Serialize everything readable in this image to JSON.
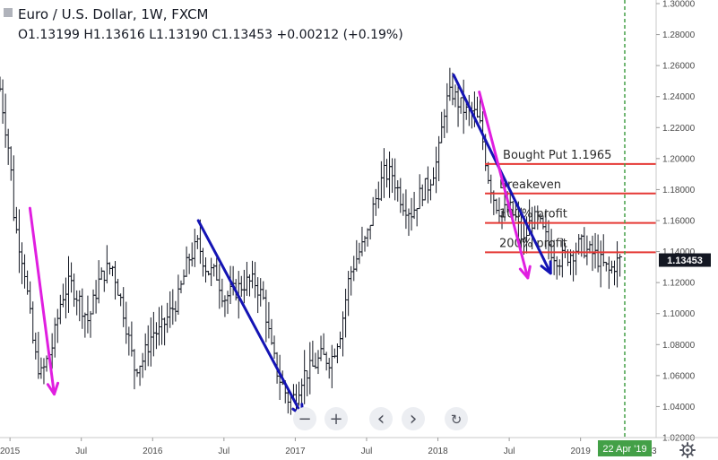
{
  "header": {
    "title": "Euro / U.S. Dollar, 1W, FXCM",
    "ohlc": "O1.13199  H1.13616  L1.13190  C1.13453  +0.00212 (+0.19%)"
  },
  "chart_data": {
    "type": "bar",
    "title": "Euro / U.S. Dollar, 1W, FXCM",
    "ylim": [
      1.02,
      1.3
    ],
    "xlim": [
      2014.93,
      2019.53
    ],
    "y_ticks": [
      "1.30000",
      "1.28000",
      "1.26000",
      "1.24000",
      "1.22000",
      "1.20000",
      "1.18000",
      "1.16000",
      "1.14000",
      "1.12000",
      "1.10000",
      "1.08000",
      "1.06000",
      "1.04000",
      "1.02000"
    ],
    "y_tick_values": [
      1.3,
      1.28,
      1.26,
      1.24,
      1.22,
      1.2,
      1.18,
      1.16,
      1.14,
      1.12,
      1.1,
      1.08,
      1.06,
      1.04,
      1.02
    ],
    "x_ticks": [
      {
        "label": "2015",
        "x": 2015.0
      },
      {
        "label": "Jul",
        "x": 2015.5
      },
      {
        "label": "2016",
        "x": 2016.0
      },
      {
        "label": "Jul",
        "x": 2016.5
      },
      {
        "label": "2017",
        "x": 2017.0
      },
      {
        "label": "Jul",
        "x": 2017.5
      },
      {
        "label": "2018",
        "x": 2018.0
      },
      {
        "label": "Jul",
        "x": 2018.5
      },
      {
        "label": "2019",
        "x": 2019.0
      }
    ],
    "price_path": [
      [
        2014.93,
        1.245
      ],
      [
        2015.0,
        1.2
      ],
      [
        2015.03,
        1.16
      ],
      [
        2015.1,
        1.13
      ],
      [
        2015.17,
        1.075
      ],
      [
        2015.22,
        1.06
      ],
      [
        2015.3,
        1.08
      ],
      [
        2015.36,
        1.11
      ],
      [
        2015.42,
        1.12
      ],
      [
        2015.48,
        1.11
      ],
      [
        2015.55,
        1.095
      ],
      [
        2015.62,
        1.12
      ],
      [
        2015.67,
        1.128
      ],
      [
        2015.72,
        1.13
      ],
      [
        2015.8,
        1.1
      ],
      [
        2015.87,
        1.065
      ],
      [
        2015.93,
        1.07
      ],
      [
        2016.0,
        1.088
      ],
      [
        2016.05,
        1.088
      ],
      [
        2016.12,
        1.1
      ],
      [
        2016.18,
        1.11
      ],
      [
        2016.25,
        1.135
      ],
      [
        2016.32,
        1.145
      ],
      [
        2016.38,
        1.128
      ],
      [
        2016.45,
        1.125
      ],
      [
        2016.5,
        1.11
      ],
      [
        2016.58,
        1.115
      ],
      [
        2016.65,
        1.12
      ],
      [
        2016.72,
        1.12
      ],
      [
        2016.78,
        1.108
      ],
      [
        2016.83,
        1.078
      ],
      [
        2016.88,
        1.06
      ],
      [
        2016.95,
        1.045
      ],
      [
        2017.0,
        1.046
      ],
      [
        2017.05,
        1.06
      ],
      [
        2017.12,
        1.065
      ],
      [
        2017.18,
        1.072
      ],
      [
        2017.25,
        1.07
      ],
      [
        2017.32,
        1.09
      ],
      [
        2017.38,
        1.125
      ],
      [
        2017.45,
        1.14
      ],
      [
        2017.5,
        1.148
      ],
      [
        2017.55,
        1.17
      ],
      [
        2017.62,
        1.19
      ],
      [
        2017.68,
        1.19
      ],
      [
        2017.75,
        1.172
      ],
      [
        2017.82,
        1.165
      ],
      [
        2017.88,
        1.178
      ],
      [
        2017.93,
        1.183
      ],
      [
        2018.0,
        1.2
      ],
      [
        2018.05,
        1.235
      ],
      [
        2018.1,
        1.243
      ],
      [
        2018.15,
        1.235
      ],
      [
        2018.2,
        1.23
      ],
      [
        2018.25,
        1.23
      ],
      [
        2018.3,
        1.22
      ],
      [
        2018.35,
        1.19
      ],
      [
        2018.4,
        1.172
      ],
      [
        2018.45,
        1.165
      ],
      [
        2018.5,
        1.168
      ],
      [
        2018.55,
        1.16
      ],
      [
        2018.6,
        1.145
      ],
      [
        2018.65,
        1.16
      ],
      [
        2018.7,
        1.16
      ],
      [
        2018.75,
        1.15
      ],
      [
        2018.8,
        1.14
      ],
      [
        2018.85,
        1.135
      ],
      [
        2018.9,
        1.137
      ],
      [
        2018.95,
        1.14
      ],
      [
        2019.0,
        1.145
      ],
      [
        2019.05,
        1.14
      ],
      [
        2019.1,
        1.138
      ],
      [
        2019.15,
        1.132
      ],
      [
        2019.2,
        1.127
      ],
      [
        2019.25,
        1.133
      ],
      [
        2019.28,
        1.1345
      ]
    ],
    "current_price": "1.13453",
    "current_price_value": 1.13453,
    "horizontal_levels": [
      {
        "label": "Bought Put 1.1965",
        "value": 1.1965,
        "x_start": 2018.33,
        "x_end": 2019.53,
        "color": "#e53935"
      },
      {
        "label": "Breakeven",
        "value": 1.1775,
        "x_start": 2018.33,
        "x_end": 2019.53,
        "color": "#e53935"
      },
      {
        "label": "100% profit",
        "value": 1.1585,
        "x_start": 2018.33,
        "x_end": 2019.53,
        "color": "#e53935"
      },
      {
        "label": "200% profit",
        "value": 1.1395,
        "x_start": 2018.33,
        "x_end": 2019.53,
        "color": "#e53935"
      }
    ],
    "trend_arrows": [
      {
        "color": "#e01ee0",
        "from": [
          2015.14,
          1.168
        ],
        "to": [
          2015.31,
          1.048
        ]
      },
      {
        "color": "#1414b4",
        "from": [
          2016.32,
          1.16
        ],
        "to": [
          2017.05,
          1.034
        ]
      },
      {
        "color": "#1414b4",
        "from": [
          2018.11,
          1.254
        ],
        "to": [
          2018.79,
          1.126
        ]
      },
      {
        "color": "#e01ee0",
        "from": [
          2018.29,
          1.243
        ],
        "to": [
          2018.63,
          1.123
        ]
      }
    ],
    "vertical_marker": {
      "x": 2019.31,
      "label": "22 Apr '19",
      "color": "#43a047"
    },
    "colors": {
      "bars": "#131722",
      "up_badge": "#43a047",
      "price_badge": "#131722"
    }
  },
  "toolbar": {
    "zoom_out": "−",
    "zoom_in": "+",
    "scroll_left": "‹",
    "scroll_right": "›",
    "reset": "↻"
  },
  "xaxis_right_label": "3",
  "settings_icon": "gear-icon"
}
